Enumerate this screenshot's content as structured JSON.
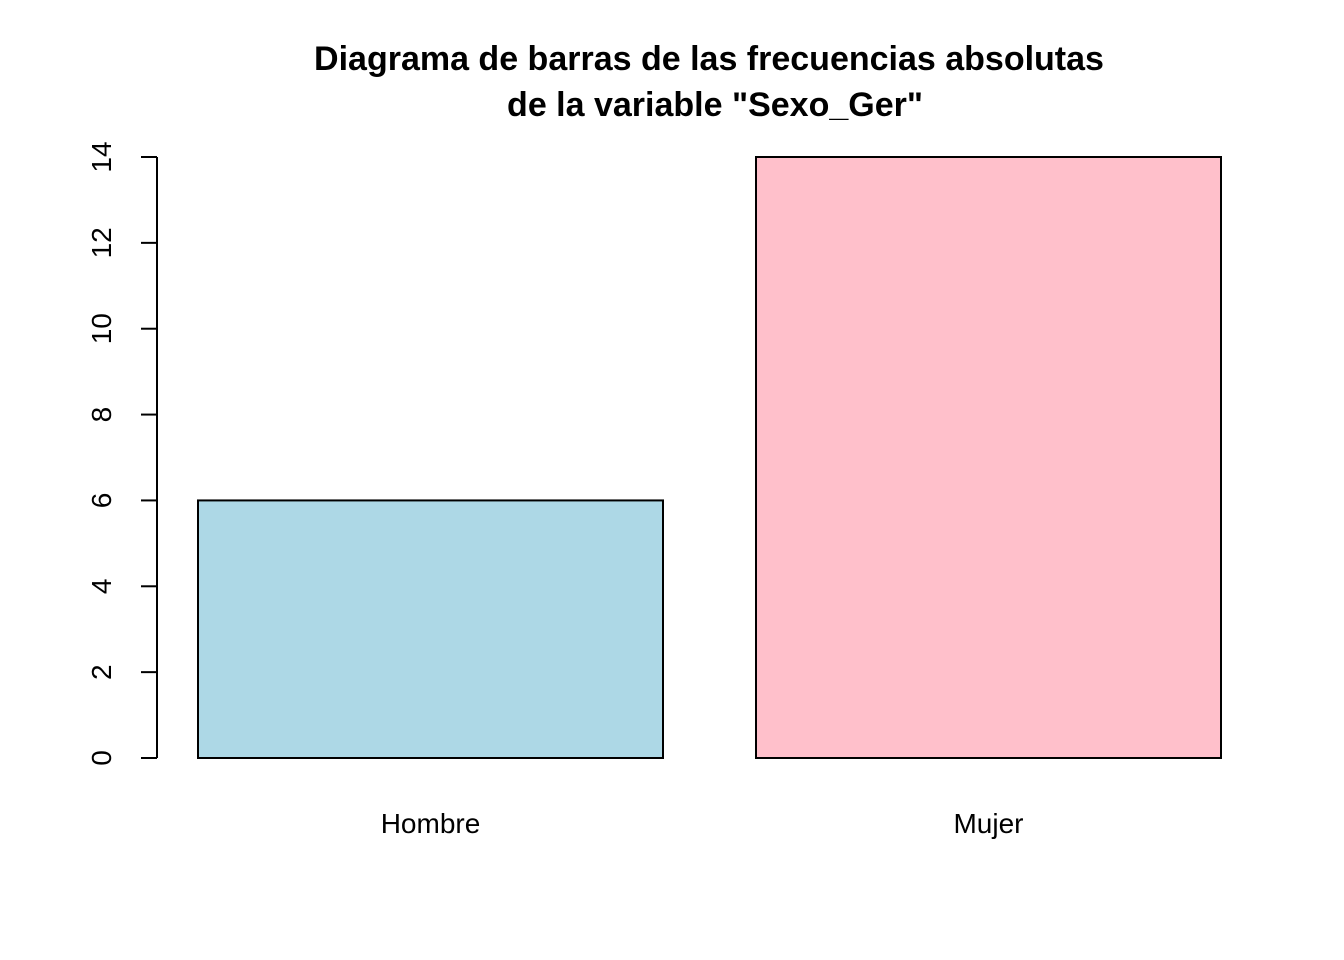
{
  "chart_data": {
    "type": "bar",
    "title_lines": [
      "Diagrama de barras de las frecuencias absolutas",
      "de la variable \"Sexo_Ger\""
    ],
    "categories": [
      "Hombre",
      "Mujer"
    ],
    "values": [
      6,
      14
    ],
    "colors": [
      "#add8e6",
      "#ffc0cb"
    ],
    "border_color": "#000000",
    "ylim": [
      0,
      14
    ],
    "yticks": [
      0,
      2,
      4,
      6,
      8,
      10,
      12,
      14
    ],
    "xlabel": "",
    "ylabel": "",
    "grid": false,
    "legend": "none"
  }
}
